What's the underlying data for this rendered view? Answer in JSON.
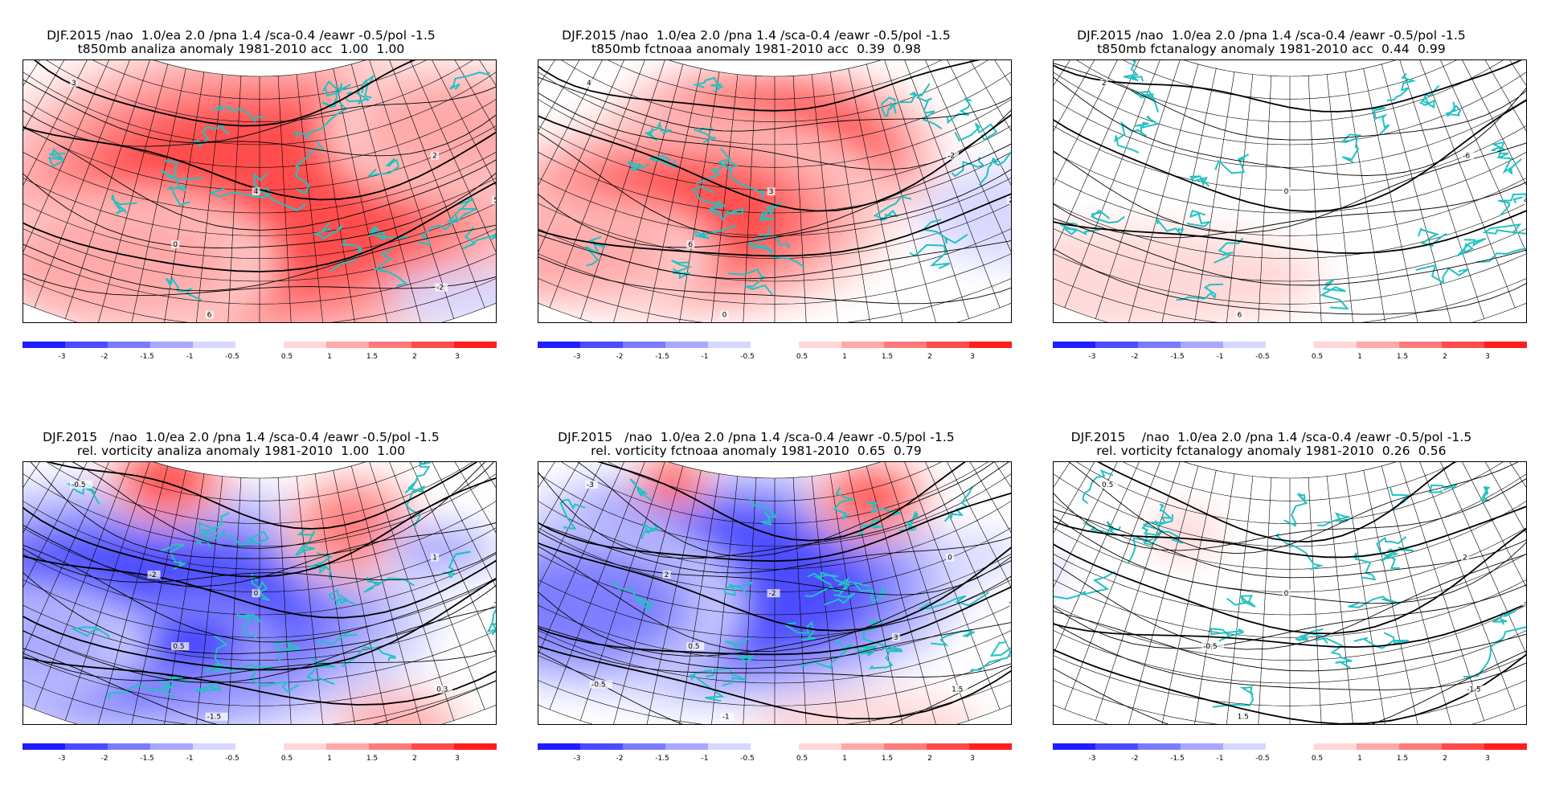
{
  "colorbar": {
    "neg_labels": [
      "-3",
      "-2",
      "-1.5",
      "-1",
      "-0.5"
    ],
    "pos_labels": [
      "0.5",
      "1",
      "1.5",
      "2",
      "3"
    ],
    "neg_colors": [
      "#1e1eff",
      "#4b4bff",
      "#7b7bff",
      "#a8a8ff",
      "#d7d7ff"
    ],
    "pos_colors": [
      "#ffd7d7",
      "#ffa8a8",
      "#ff7b7b",
      "#ff4b4b",
      "#ff1e1e"
    ]
  },
  "colors": {
    "coast": "#22c2c2",
    "grid": "#000000",
    "contour": "#000000"
  },
  "panels": [
    {
      "line1": "DJF.2015 /nao  1.0/ea 2.0 /pna 1.4 /sca-0.4 /eawr -0.5/pol -1.5",
      "line2": "t850mb analiza anomaly 1981-2010 acc  1.00  1.00",
      "field": "t850",
      "blobs": [
        [
          "pos",
          0.5,
          0.45,
          0.55,
          0.55,
          2.3
        ],
        [
          "pos",
          0.3,
          0.75,
          0.3,
          0.25,
          1.4
        ],
        [
          "pos",
          0.85,
          0.35,
          0.25,
          0.25,
          1.2
        ],
        [
          "neg",
          0.78,
          0.95,
          0.2,
          0.12,
          0.5
        ],
        [
          "pos",
          0.1,
          0.92,
          0.08,
          0.05,
          1.5
        ]
      ],
      "contour_labels": [
        "3",
        "4",
        "5",
        "6",
        "2",
        "0",
        "-2"
      ]
    },
    {
      "line1": "DJF.2015 /nao  1.0/ea 2.0 /pna 1.4 /sca-0.4 /eawr -0.5/pol -1.5",
      "line2": "t850mb fctnoaa anomaly 1981-2010 acc  0.39  0.98",
      "field": "t850",
      "blobs": [
        [
          "pos",
          0.48,
          0.28,
          0.32,
          0.3,
          3.0
        ],
        [
          "pos",
          0.35,
          0.55,
          0.4,
          0.35,
          2.0
        ],
        [
          "pos",
          0.2,
          0.8,
          0.3,
          0.2,
          1.2
        ],
        [
          "neg",
          0.85,
          0.7,
          0.2,
          0.2,
          0.6
        ],
        [
          "neg",
          0.55,
          1.0,
          0.3,
          0.1,
          0.4
        ]
      ],
      "contour_labels": [
        "4",
        "3",
        "2",
        "0",
        "-2",
        "6"
      ]
    },
    {
      "line1": "DJF.2015 /nao  1.0/ea 2.0 /pna 1.4 /sca-0.4 /eawr -0.5/pol -1.5",
      "line2": "t850mb fctanalogy anomaly 1981-2010 acc  0.44  0.99",
      "field": "t850",
      "blobs": [
        [
          "pos",
          0.25,
          0.85,
          0.45,
          0.2,
          0.9
        ],
        [
          "pos",
          0.72,
          0.9,
          0.2,
          0.1,
          0.4
        ],
        [
          "neg",
          0.75,
          0.03,
          0.03,
          0.03,
          0.3
        ]
      ],
      "contour_labels": [
        "2",
        "0",
        "4",
        "6",
        "-6"
      ]
    },
    {
      "line1": "DJF.2015   /nao  1.0/ea 2.0 /pna 1.4 /sca-0.4 /eawr -0.5/pol -1.5",
      "line2": "rel. vorticity analiza anomaly 1981-2010  1.00  1.00",
      "field": "vort",
      "blobs": [
        [
          "neg",
          0.3,
          0.55,
          0.55,
          0.45,
          2.3
        ],
        [
          "neg",
          0.4,
          0.62,
          0.14,
          0.12,
          3.2
        ],
        [
          "pos",
          0.3,
          0.05,
          0.12,
          0.15,
          2.4
        ],
        [
          "pos",
          0.68,
          0.22,
          0.14,
          0.2,
          1.6
        ],
        [
          "neg",
          0.82,
          0.4,
          0.12,
          0.1,
          1.3
        ],
        [
          "pos",
          0.68,
          0.95,
          0.15,
          0.12,
          1.1
        ],
        [
          "neg",
          0.15,
          0.8,
          0.25,
          0.2,
          1.4
        ]
      ],
      "contour_labels": [
        "-0.5",
        "0",
        "-1",
        "-1.5",
        "1",
        "0.5",
        "0.3",
        "-2"
      ]
    },
    {
      "line1": "DJF.2015   /nao  1.0/ea 2.0 /pna 1.4 /sca-0.4 /eawr -0.5/pol -1.5",
      "line2": "rel. vorticity fctnoaa anomaly 1981-2010  0.65  0.79",
      "field": "vort",
      "blobs": [
        [
          "neg",
          0.4,
          0.4,
          0.45,
          0.4,
          2.6
        ],
        [
          "neg",
          0.2,
          0.6,
          0.3,
          0.3,
          1.6
        ],
        [
          "pos",
          0.28,
          0.06,
          0.08,
          0.1,
          2.2
        ],
        [
          "pos",
          0.7,
          0.12,
          0.12,
          0.15,
          2.0
        ],
        [
          "pos",
          0.62,
          0.95,
          0.25,
          0.15,
          0.9
        ],
        [
          "neg",
          0.85,
          0.45,
          0.1,
          0.1,
          0.5
        ]
      ],
      "contour_labels": [
        "-3",
        "-2",
        "-1.5",
        "-1",
        "0",
        "0.5",
        "1.5",
        "2",
        "3",
        "-0.5"
      ]
    },
    {
      "line1": "DJF.2015    /nao  1.0/ea 2.0 /pna 1.4 /sca-0.4 /eawr -0.5/pol -1.5",
      "line2": "rel. vorticity fctanalogy anomaly 1981-2010  0.26  0.56",
      "field": "vort",
      "blobs": [
        [
          "pos",
          0.3,
          0.25,
          0.08,
          0.1,
          0.8
        ],
        [
          "neg",
          0.08,
          0.6,
          0.08,
          0.1,
          0.8
        ],
        [
          "neg",
          0.15,
          0.75,
          0.15,
          0.12,
          0.4
        ]
      ],
      "contour_labels": [
        "0.5",
        "0",
        "-1",
        "1.5",
        "2",
        "-0.5",
        "-1.5"
      ]
    }
  ]
}
